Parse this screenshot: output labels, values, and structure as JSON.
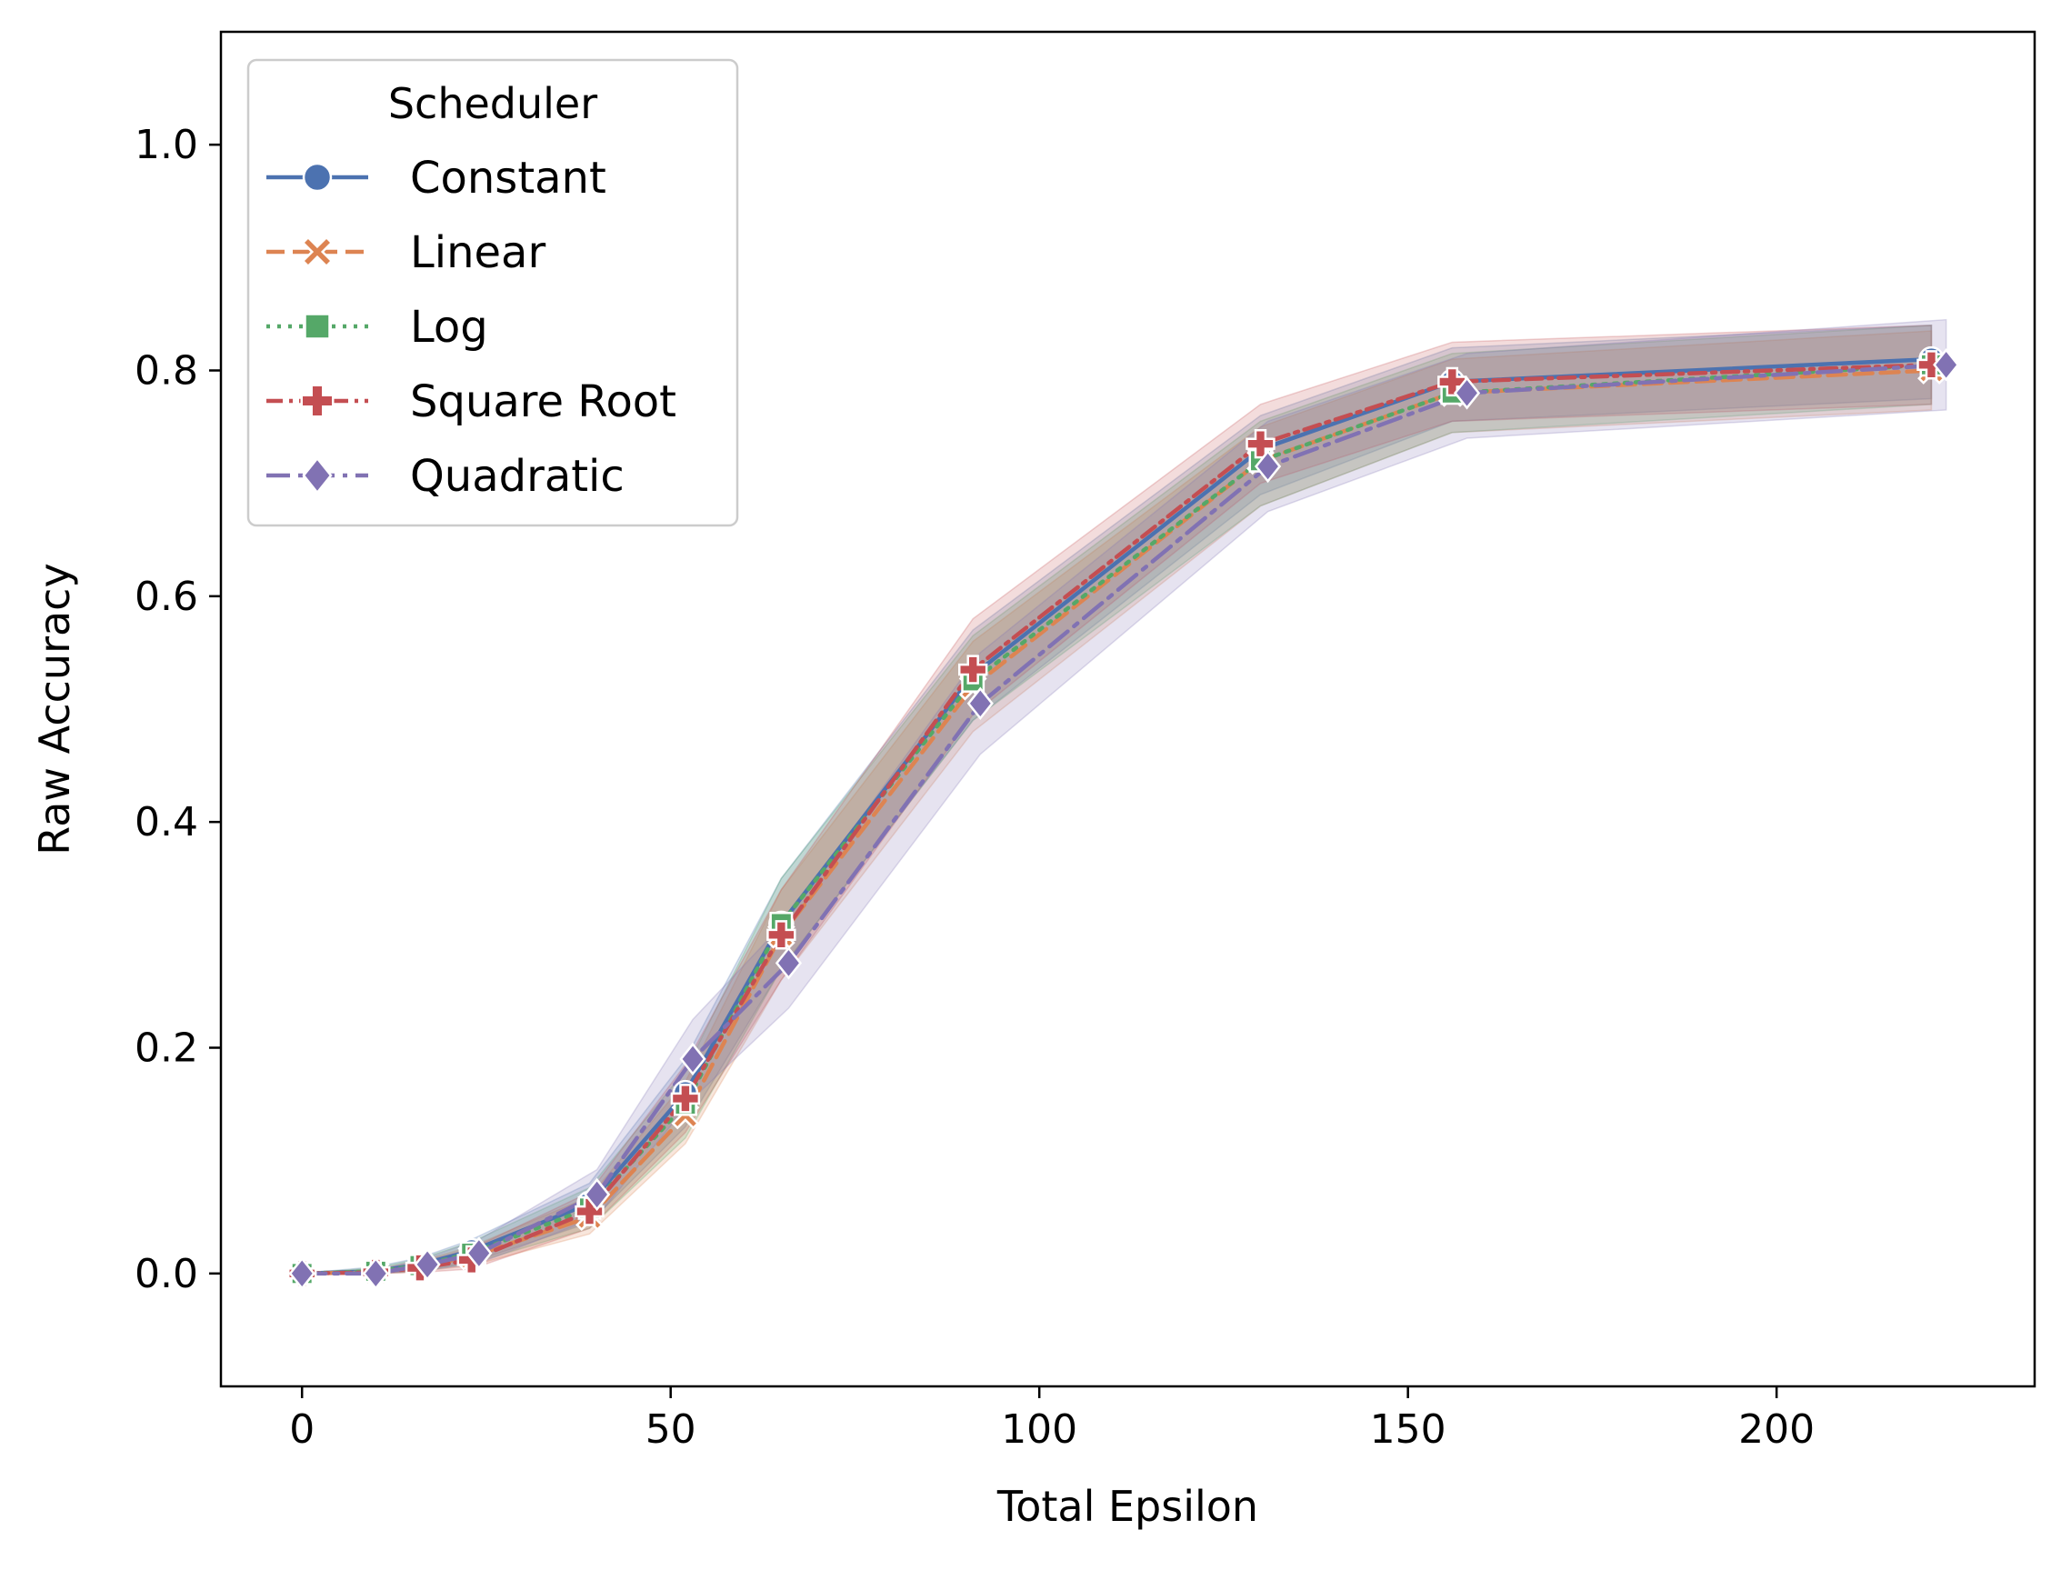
{
  "chart_data": {
    "type": "line",
    "xlabel": "Total Epsilon",
    "ylabel": "Raw Accuracy",
    "xlim": [
      -11,
      235
    ],
    "ylim": [
      -0.1,
      1.1
    ],
    "xticks": [
      0,
      50,
      100,
      150,
      200
    ],
    "yticks": [
      0.0,
      0.2,
      0.4,
      0.6,
      0.8,
      1.0
    ],
    "xtick_labels": [
      "0",
      "50",
      "100",
      "150",
      "200"
    ],
    "ytick_labels": [
      "0.0",
      "0.2",
      "0.4",
      "0.6",
      "0.8",
      "1.0"
    ],
    "grid": false,
    "legend": {
      "title": "Scheduler",
      "placement": "top-left",
      "entries": [
        "Constant",
        "Linear",
        "Log",
        "Square Root",
        "Quadratic"
      ]
    },
    "series": [
      {
        "name": "Constant",
        "color": "#4c72b0",
        "dash": "solid",
        "marker": "circle",
        "x": [
          0,
          10,
          16,
          23,
          39,
          52,
          65,
          91,
          130,
          156,
          221
        ],
        "y": [
          0.0,
          0.002,
          0.008,
          0.02,
          0.062,
          0.16,
          0.31,
          0.53,
          0.73,
          0.79,
          0.81
        ],
        "lower": [
          0.0,
          0.0,
          0.003,
          0.01,
          0.045,
          0.13,
          0.27,
          0.49,
          0.69,
          0.755,
          0.775
        ],
        "upper": [
          0.0,
          0.006,
          0.014,
          0.03,
          0.08,
          0.19,
          0.35,
          0.57,
          0.76,
          0.82,
          0.84
        ]
      },
      {
        "name": "Linear",
        "color": "#dd8452",
        "dash": "dashed",
        "marker": "x-marker",
        "x": [
          0,
          10,
          16,
          23,
          39,
          52,
          65,
          91,
          130,
          156,
          221
        ],
        "y": [
          0.0,
          0.001,
          0.006,
          0.015,
          0.05,
          0.14,
          0.3,
          0.52,
          0.72,
          0.78,
          0.8
        ],
        "lower": [
          0.0,
          0.0,
          0.002,
          0.007,
          0.035,
          0.115,
          0.26,
          0.48,
          0.68,
          0.745,
          0.765
        ],
        "upper": [
          0.0,
          0.004,
          0.011,
          0.024,
          0.068,
          0.17,
          0.34,
          0.56,
          0.75,
          0.81,
          0.835
        ]
      },
      {
        "name": "Log",
        "color": "#55a868",
        "dash": "dotted",
        "marker": "square",
        "x": [
          0,
          10,
          16,
          23,
          39,
          52,
          65,
          91,
          130,
          156,
          221
        ],
        "y": [
          0.0,
          0.002,
          0.007,
          0.018,
          0.058,
          0.15,
          0.31,
          0.525,
          0.72,
          0.78,
          0.805
        ],
        "lower": [
          0.0,
          0.0,
          0.002,
          0.009,
          0.04,
          0.12,
          0.27,
          0.49,
          0.68,
          0.745,
          0.77
        ],
        "upper": [
          0.0,
          0.005,
          0.013,
          0.028,
          0.076,
          0.18,
          0.35,
          0.565,
          0.755,
          0.815,
          0.84
        ]
      },
      {
        "name": "Square Root",
        "color": "#c44e52",
        "dash": "dashdot-plus",
        "marker": "plus",
        "x": [
          0,
          10,
          16,
          23,
          39,
          52,
          65,
          91,
          130,
          156,
          221
        ],
        "y": [
          0.0,
          0.001,
          0.005,
          0.012,
          0.055,
          0.155,
          0.3,
          0.535,
          0.735,
          0.79,
          0.805
        ],
        "lower": [
          0.0,
          0.0,
          0.001,
          0.004,
          0.04,
          0.125,
          0.26,
          0.495,
          0.7,
          0.755,
          0.77
        ],
        "upper": [
          0.0,
          0.003,
          0.01,
          0.022,
          0.072,
          0.185,
          0.34,
          0.58,
          0.77,
          0.825,
          0.84
        ]
      },
      {
        "name": "Quadratic",
        "color": "#8172b3",
        "dash": "dashdot",
        "marker": "diamond",
        "x": [
          0,
          10,
          17,
          24,
          40,
          53,
          66,
          92,
          131,
          158,
          223
        ],
        "y": [
          0.0,
          0.0,
          0.008,
          0.018,
          0.07,
          0.19,
          0.275,
          0.505,
          0.715,
          0.78,
          0.805
        ],
        "lower": [
          0.0,
          0.0,
          0.003,
          0.009,
          0.05,
          0.155,
          0.235,
          0.46,
          0.675,
          0.74,
          0.765
        ],
        "upper": [
          0.0,
          0.003,
          0.014,
          0.03,
          0.092,
          0.225,
          0.315,
          0.55,
          0.755,
          0.815,
          0.845
        ]
      }
    ]
  }
}
